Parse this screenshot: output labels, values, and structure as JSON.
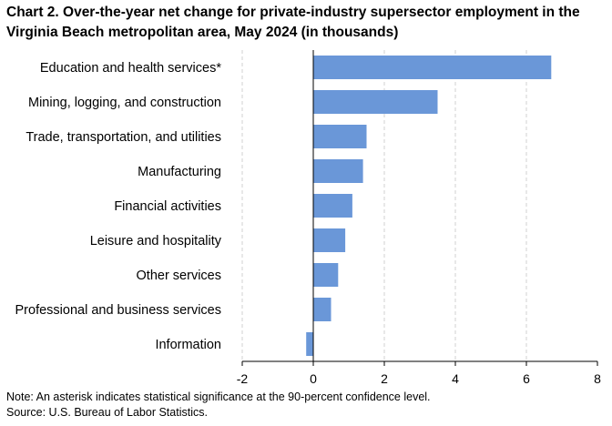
{
  "title": "Chart 2. Over-the-year net change for private-industry supersector employment in the Virginia Beach metropolitan area, May 2024 (in thousands)",
  "note": "Note: An asterisk indicates statistical significance at the 90-percent confidence level.",
  "source": "Source: U.S. Bureau of Labor Statistics.",
  "colors": {
    "bar": "#6a97d8",
    "grid": "#d0d0d0",
    "axis": "#000000"
  },
  "chart_data": {
    "type": "bar",
    "orientation": "horizontal",
    "categories": [
      "Education and health services*",
      "Mining, logging, and construction",
      "Trade, transportation, and utilities",
      "Manufacturing",
      "Financial activities",
      "Leisure and hospitality",
      "Other services",
      "Professional and business services",
      "Information"
    ],
    "values": [
      6.7,
      3.5,
      1.5,
      1.4,
      1.1,
      0.9,
      0.7,
      0.5,
      -0.2
    ],
    "xlim": [
      -2,
      8
    ],
    "xticks": [
      "-2",
      "0",
      "2",
      "4",
      "6",
      "8"
    ],
    "grid": "vertical dashed"
  }
}
